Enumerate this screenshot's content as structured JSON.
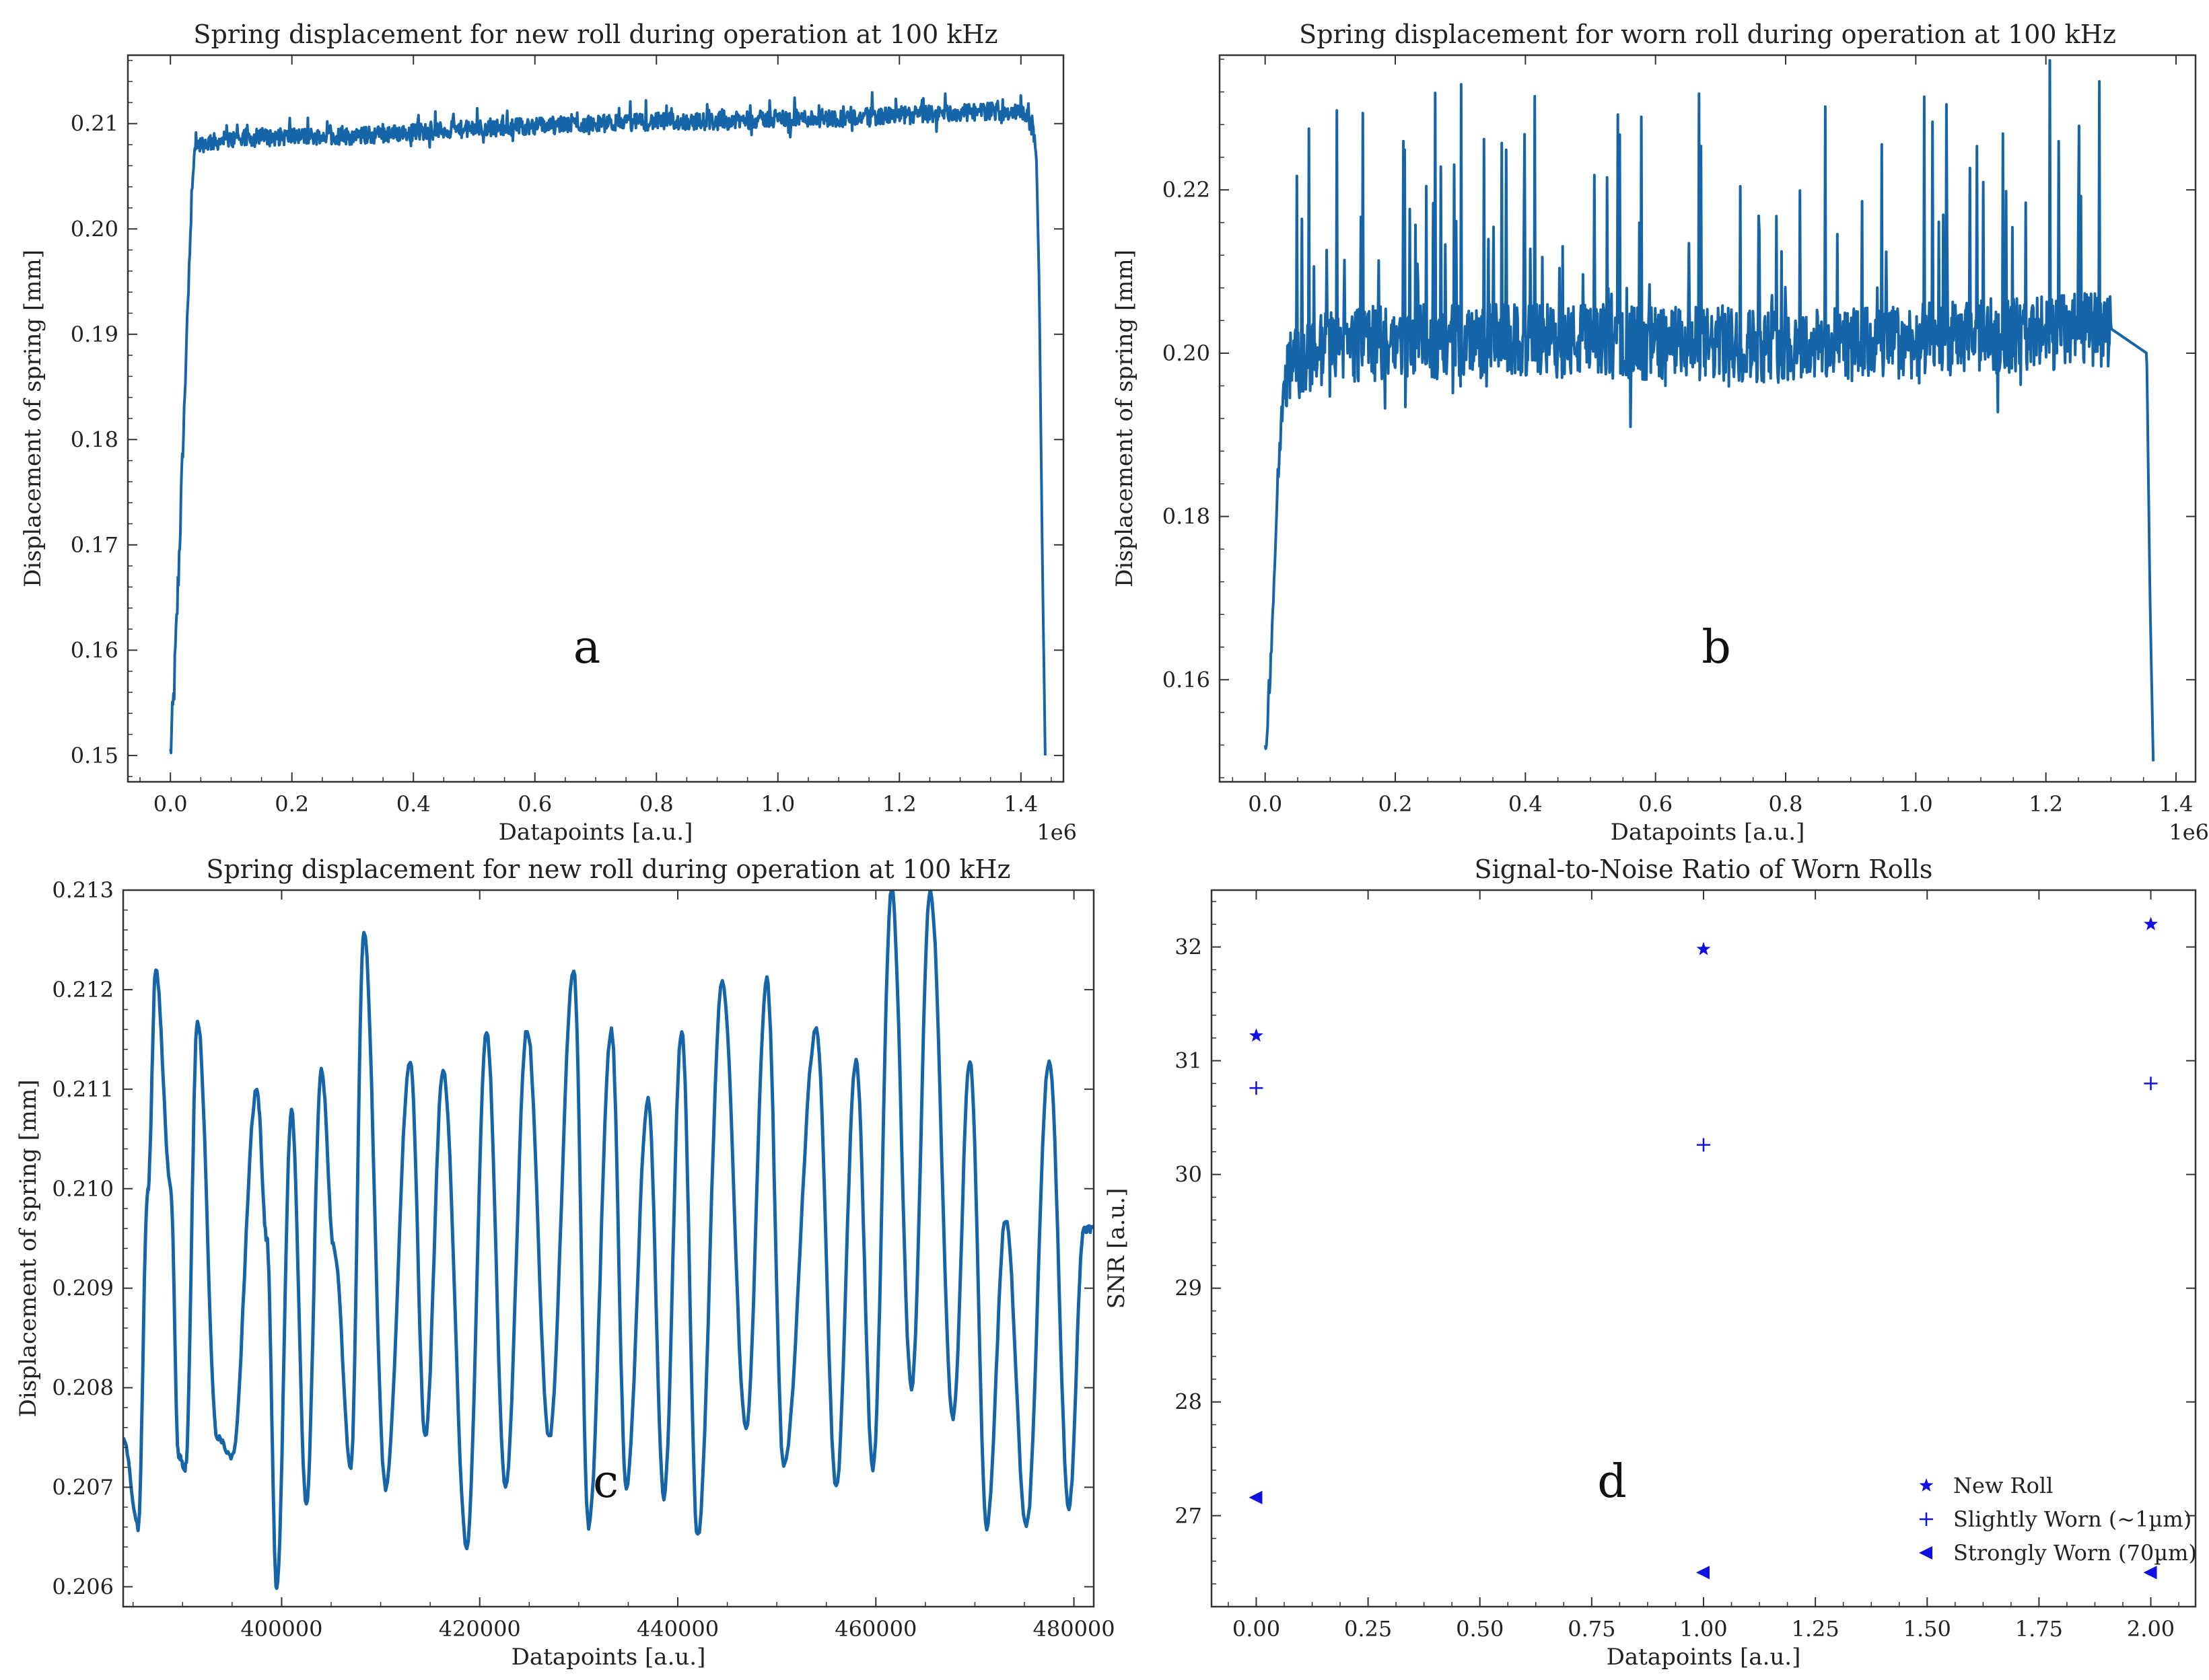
{
  "figure": {
    "colors": {
      "line": "#1565a8",
      "marker": "#1010e0",
      "axis": "#333333"
    }
  },
  "chart_data": [
    {
      "id": "a",
      "type": "line",
      "title": "Spring displacement for new roll during operation at 100 kHz",
      "xlabel": "Datapoints [a.u.]",
      "ylabel": "Displacement of spring [mm]",
      "x_offset_label": "1e6",
      "xlim": [
        -0.07,
        1.47
      ],
      "ylim": [
        0.1475,
        0.2165
      ],
      "xticks": [
        0.0,
        0.2,
        0.4,
        0.6,
        0.8,
        1.0,
        1.2,
        1.4
      ],
      "xtick_labels": [
        "0.0",
        "0.2",
        "0.4",
        "0.6",
        "0.8",
        "1.0",
        "1.2",
        "1.4"
      ],
      "yticks": [
        0.15,
        0.16,
        0.17,
        0.18,
        0.19,
        0.2,
        0.21
      ],
      "ytick_labels": [
        "0.15",
        "0.16",
        "0.17",
        "0.18",
        "0.19",
        "0.20",
        "0.21"
      ],
      "panel_label": "a",
      "series": [
        {
          "color": "#1565a8",
          "x": [
            0.0,
            0.005,
            0.01,
            0.02,
            0.03,
            0.035,
            0.04,
            0.1,
            0.2,
            0.3,
            0.4,
            0.5,
            0.6,
            0.7,
            0.8,
            0.9,
            1.0,
            1.1,
            1.2,
            1.3,
            1.35,
            1.41,
            1.425,
            1.43,
            1.435,
            1.44
          ],
          "y": [
            0.15,
            0.155,
            0.162,
            0.178,
            0.195,
            0.203,
            0.208,
            0.2085,
            0.2088,
            0.2088,
            0.2092,
            0.2095,
            0.2098,
            0.21,
            0.2102,
            0.2102,
            0.2105,
            0.2105,
            0.2108,
            0.211,
            0.2112,
            0.211,
            0.208,
            0.195,
            0.17,
            0.15
          ],
          "noise_band": [
            0.207,
            0.2145
          ]
        }
      ]
    },
    {
      "id": "b",
      "type": "line",
      "title": "Spring displacement for worn roll during operation at 100 kHz",
      "xlabel": "Datapoints [a.u.]",
      "ylabel": "Displacement of spring [mm]",
      "x_offset_label": "1e6",
      "xlim": [
        -0.07,
        1.43
      ],
      "ylim": [
        0.1475,
        0.2365
      ],
      "xticks": [
        0.0,
        0.2,
        0.4,
        0.6,
        0.8,
        1.0,
        1.2,
        1.4
      ],
      "xtick_labels": [
        "0.0",
        "0.2",
        "0.4",
        "0.6",
        "0.8",
        "1.0",
        "1.2",
        "1.4"
      ],
      "yticks": [
        0.16,
        0.18,
        0.2,
        0.22
      ],
      "ytick_labels": [
        "0.16",
        "0.18",
        "0.20",
        "0.22"
      ],
      "panel_label": "b",
      "series": [
        {
          "color": "#1565a8",
          "x": [
            0.0,
            0.01,
            0.02,
            0.03,
            0.1,
            0.3,
            0.5,
            0.7,
            0.9,
            1.1,
            1.3,
            1.355,
            1.36,
            1.365
          ],
          "y": [
            0.15,
            0.165,
            0.185,
            0.198,
            0.201,
            0.2015,
            0.2015,
            0.201,
            0.201,
            0.202,
            0.203,
            0.2,
            0.17,
            0.15
          ],
          "noise_band": [
            0.192,
            0.234
          ]
        }
      ]
    },
    {
      "id": "c",
      "type": "line",
      "title": "Spring displacement for new roll during operation at 100 kHz",
      "xlabel": "Datapoints [a.u.]",
      "ylabel": "Displacement of spring [mm]",
      "xlim": [
        384000,
        482000
      ],
      "ylim": [
        0.2058,
        0.213
      ],
      "xticks": [
        400000,
        420000,
        440000,
        460000,
        480000
      ],
      "xtick_labels": [
        "400000",
        "420000",
        "440000",
        "460000",
        "480000"
      ],
      "yticks": [
        0.206,
        0.207,
        0.208,
        0.209,
        0.21,
        0.211,
        0.212,
        0.213
      ],
      "ytick_labels": [
        "0.206",
        "0.207",
        "0.208",
        "0.209",
        "0.210",
        "0.211",
        "0.212",
        "0.213"
      ],
      "panel_label": "c",
      "series": [
        {
          "color": "#1565a8",
          "x": [
            384000,
            385500,
            386500,
            387300,
            388800,
            389600,
            390300,
            391500,
            393500,
            395000,
            397500,
            398500,
            399500,
            401000,
            402500,
            404000,
            405300,
            407000,
            408300,
            410500,
            413000,
            414500,
            416300,
            418700,
            420700,
            422600,
            424800,
            427000,
            429500,
            431000,
            433300,
            434800,
            437000,
            438600,
            440400,
            442000,
            444500,
            446900,
            449000,
            450700,
            454000,
            456000,
            458000,
            459700,
            461600,
            463600,
            465500,
            467800,
            469500,
            471200,
            473100,
            475200,
            477500,
            479500,
            481000,
            482000
          ],
          "y": [
            0.2075,
            0.2066,
            0.21,
            0.2122,
            0.21,
            0.2073,
            0.2072,
            0.2117,
            0.2075,
            0.2073,
            0.211,
            0.2095,
            0.206,
            0.2108,
            0.2068,
            0.2112,
            0.2094,
            0.2072,
            0.2126,
            0.207,
            0.2113,
            0.2075,
            0.2112,
            0.2064,
            0.2116,
            0.207,
            0.2116,
            0.2075,
            0.2122,
            0.2066,
            0.2116,
            0.207,
            0.2109,
            0.2069,
            0.2116,
            0.2065,
            0.2121,
            0.2076,
            0.2121,
            0.2072,
            0.2116,
            0.207,
            0.2113,
            0.2072,
            0.213,
            0.208,
            0.213,
            0.2077,
            0.2113,
            0.2066,
            0.2097,
            0.2066,
            0.2113,
            0.2068,
            0.2096,
            0.2096
          ]
        }
      ]
    },
    {
      "id": "d",
      "type": "scatter",
      "title": "Signal-to-Noise Ratio of Worn Rolls",
      "xlabel": "Datapoints [a.u.]",
      "ylabel": "SNR [a.u.]",
      "xlim": [
        -0.1,
        2.1
      ],
      "ylim": [
        26.2,
        32.5
      ],
      "xticks": [
        0.0,
        0.25,
        0.5,
        0.75,
        1.0,
        1.25,
        1.5,
        1.75,
        2.0
      ],
      "xtick_labels": [
        "0.00",
        "0.25",
        "0.50",
        "0.75",
        "1.00",
        "1.25",
        "1.50",
        "1.75",
        "2.00"
      ],
      "yticks": [
        27,
        28,
        29,
        30,
        31,
        32
      ],
      "ytick_labels": [
        "27",
        "28",
        "29",
        "30",
        "31",
        "32"
      ],
      "panel_label": "d",
      "legend_position": "lower-right",
      "series": [
        {
          "name": "New Roll",
          "marker": "star",
          "x": [
            0,
            1,
            2
          ],
          "y": [
            31.22,
            31.98,
            32.2
          ]
        },
        {
          "name": "Slightly Worn (~1µm)",
          "marker": "plus",
          "x": [
            0,
            1,
            2
          ],
          "y": [
            30.76,
            30.26,
            30.8
          ]
        },
        {
          "name": "Strongly Worn (70µm)",
          "marker": "triangle-left",
          "x": [
            0,
            1,
            2
          ],
          "y": [
            27.16,
            26.5,
            26.5
          ]
        }
      ]
    }
  ]
}
